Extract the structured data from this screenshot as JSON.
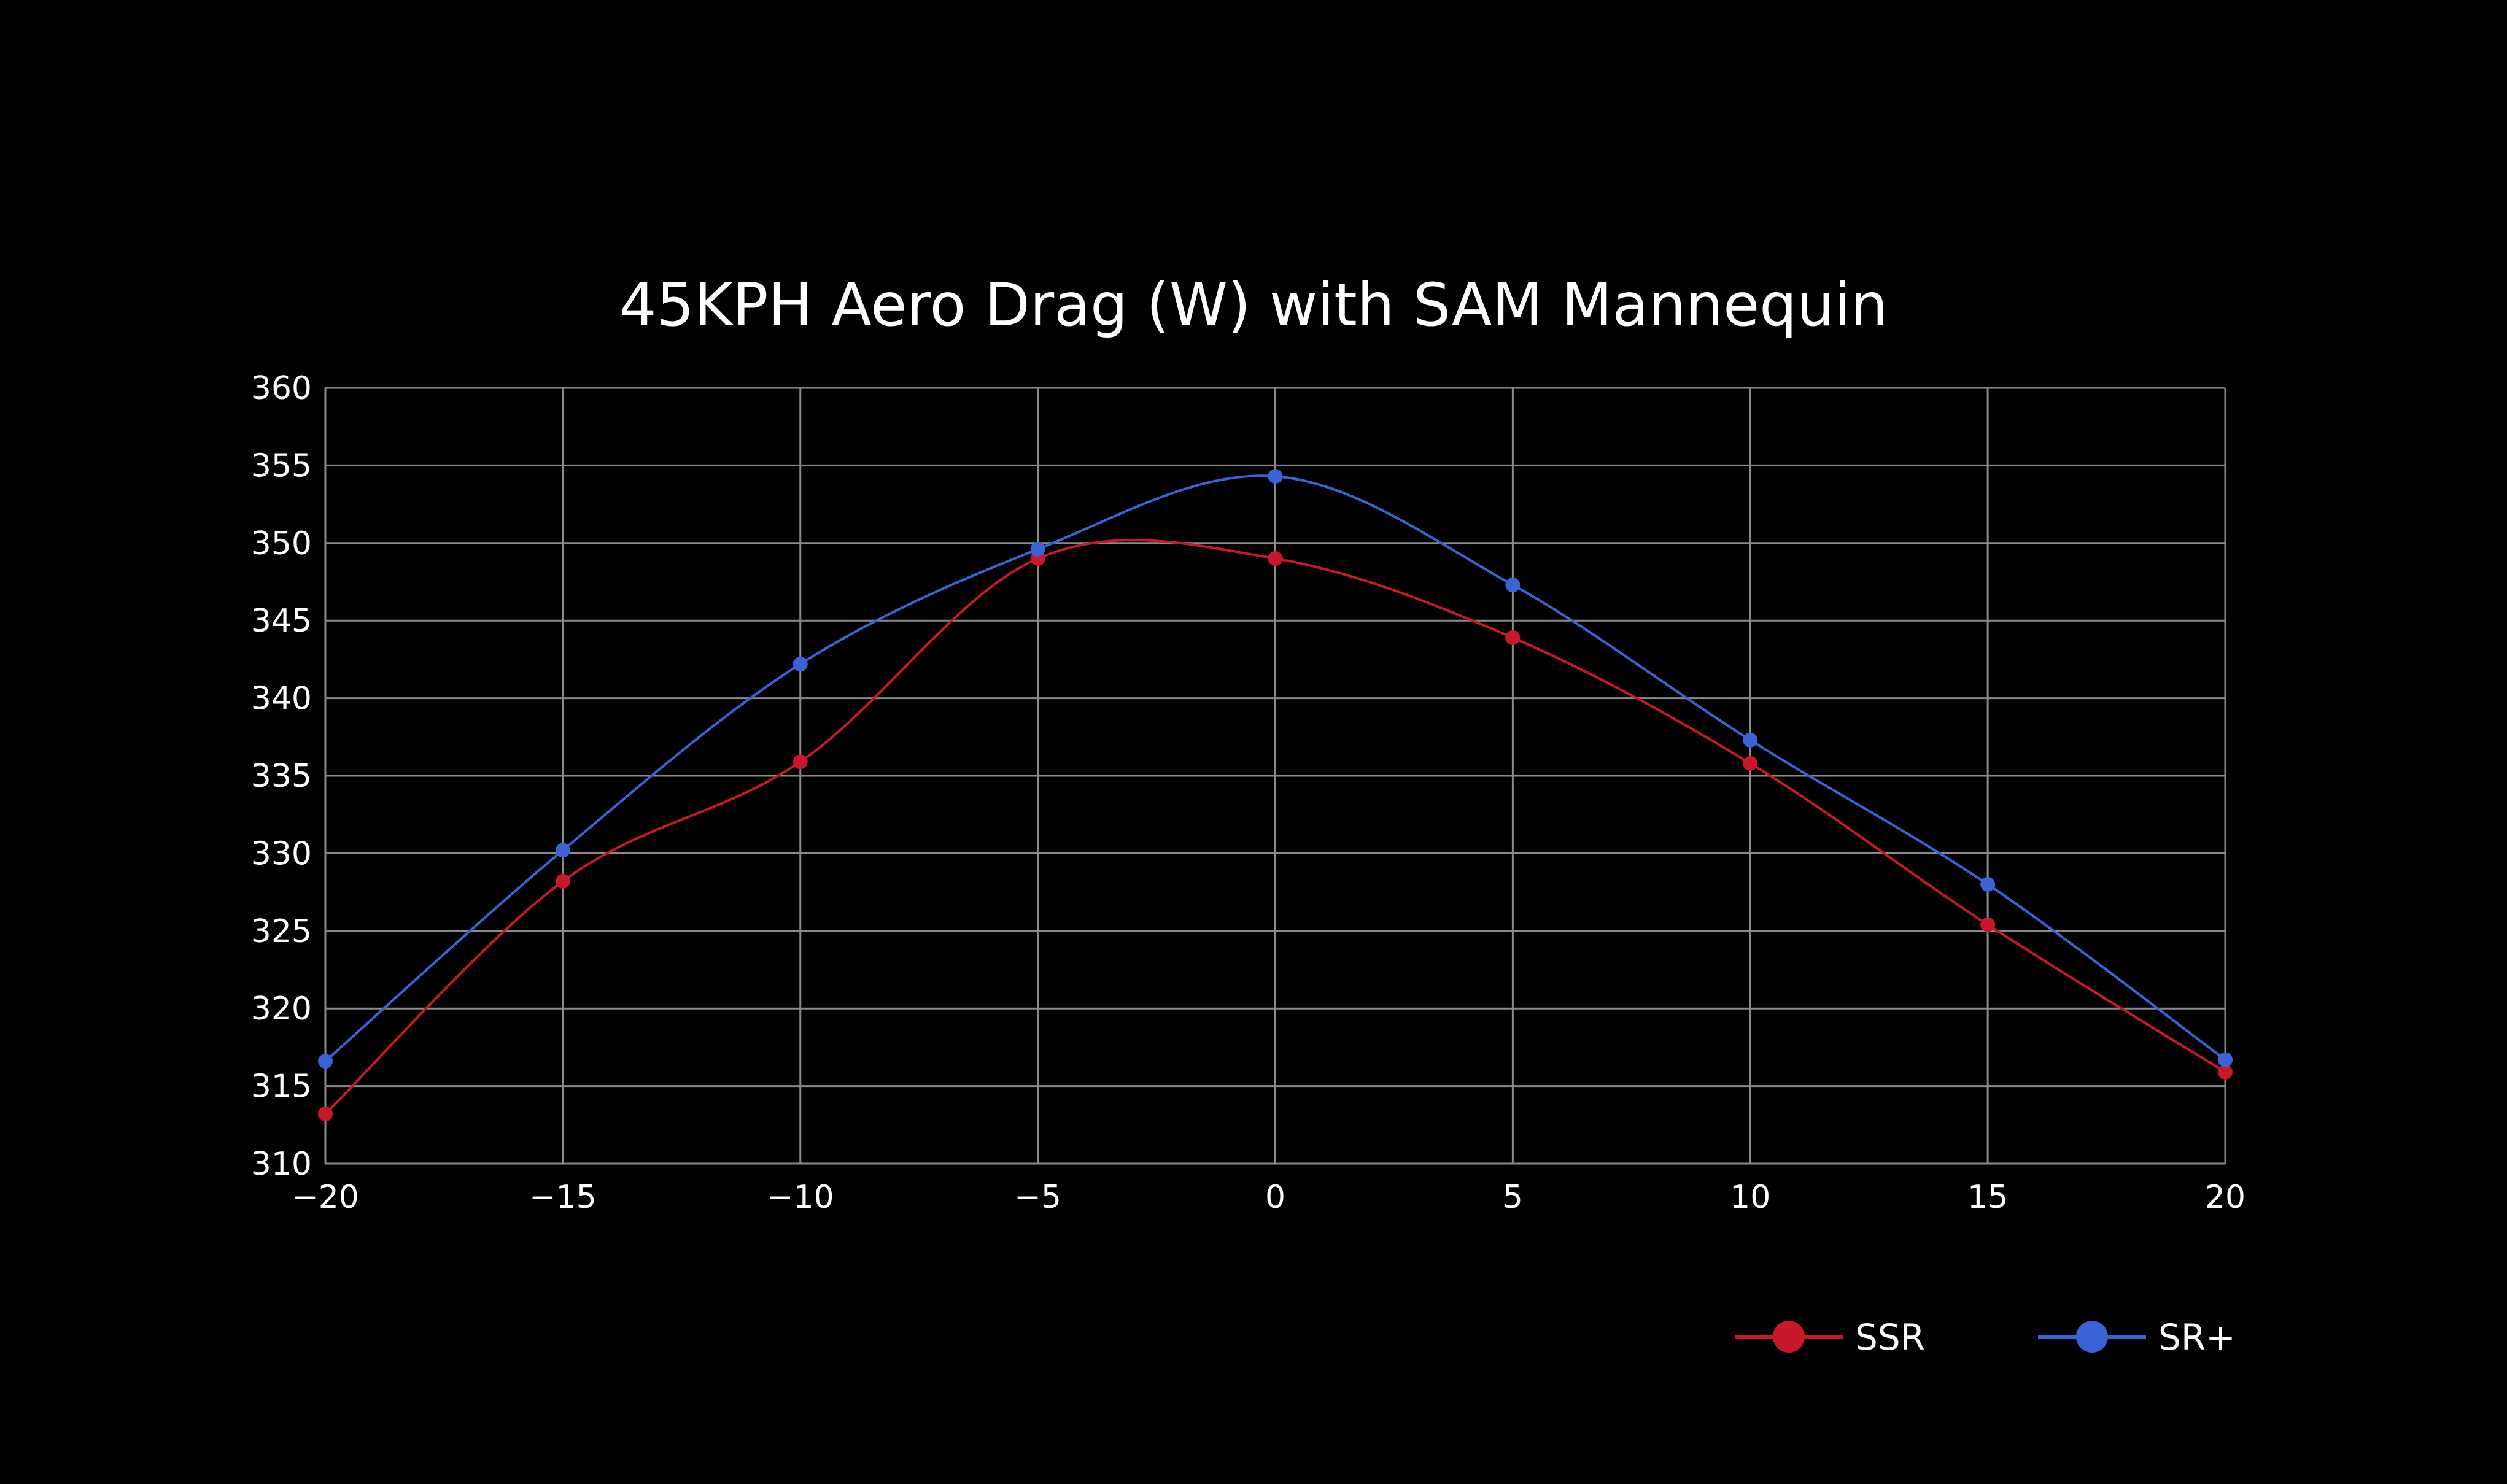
{
  "chart_data": {
    "type": "line",
    "title": "45KPH Aero Drag (W) with SAM Mannequin",
    "xlabel": "",
    "ylabel": "",
    "x": [
      -20,
      -15,
      -10,
      -5,
      0,
      5,
      10,
      15,
      20
    ],
    "xticks": [
      "-20",
      "-15",
      "-10",
      "-5",
      "0",
      "5",
      "10",
      "15",
      "20"
    ],
    "yticks": [
      "310",
      "315",
      "320",
      "325",
      "330",
      "335",
      "340",
      "345",
      "350",
      "355",
      "360"
    ],
    "xlim": [
      -20,
      20
    ],
    "ylim": [
      310,
      360
    ],
    "grid": true,
    "legend_position": "bottom-right",
    "series": [
      {
        "name": "SSR",
        "color": "#c8182a",
        "values": [
          313.2,
          328.2,
          335.9,
          349.0,
          349.0,
          343.9,
          335.8,
          325.4,
          315.9
        ]
      },
      {
        "name": "SR+",
        "color": "#3a63d8",
        "values": [
          316.6,
          330.2,
          342.2,
          349.6,
          354.3,
          347.3,
          337.3,
          328.0,
          316.7
        ]
      }
    ]
  }
}
